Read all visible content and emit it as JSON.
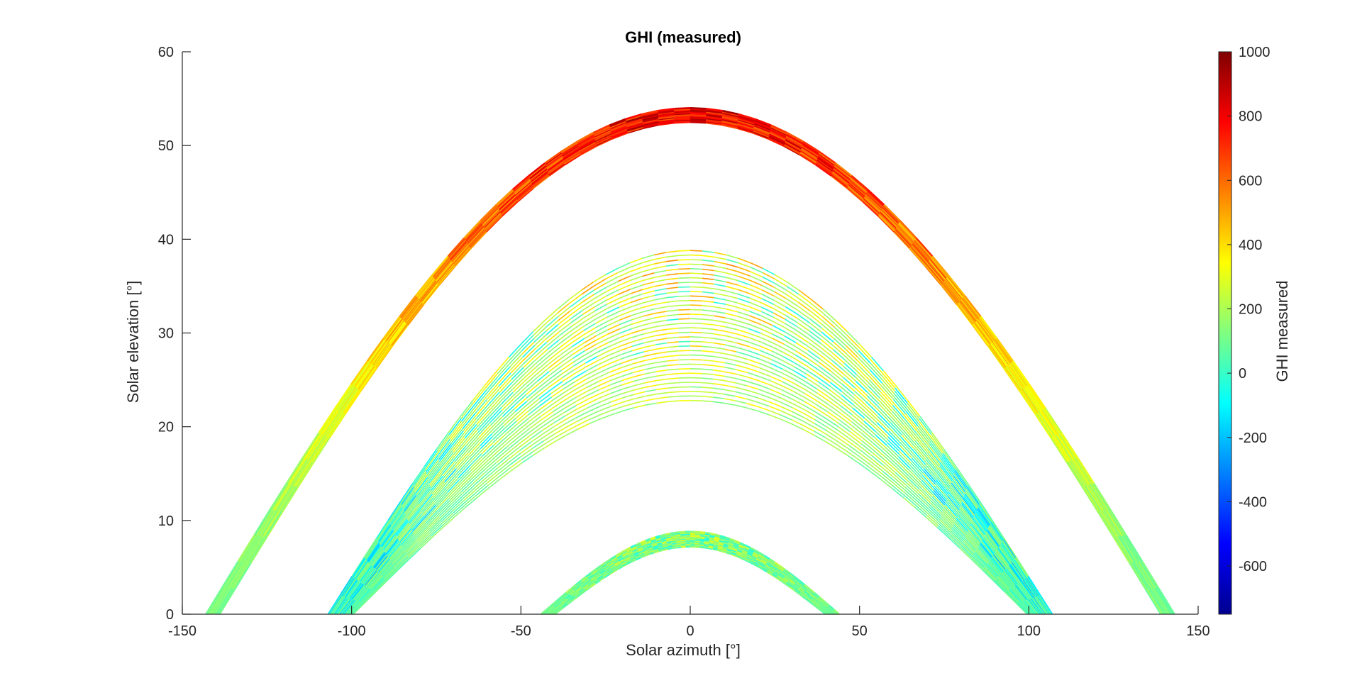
{
  "chart_data": {
    "type": "scatter",
    "title": "GHI (measured)",
    "xlabel": "Solar azimuth [°]",
    "ylabel": "Solar elevation [°]",
    "xlim": [
      -150,
      150
    ],
    "ylim": [
      0,
      60
    ],
    "xticks": [
      -150,
      -100,
      -50,
      0,
      50,
      100,
      150
    ],
    "yticks": [
      0,
      10,
      20,
      30,
      40,
      50,
      60
    ],
    "grid": false,
    "colorbar": {
      "label": "GHI measured",
      "colormap": "jet",
      "range": [
        -750,
        1000
      ],
      "ticks": [
        -600,
        -400,
        -200,
        0,
        200,
        400,
        600,
        800,
        1000
      ],
      "colors": [
        "#00008f",
        "#0000ff",
        "#0080ff",
        "#00ffff",
        "#80ff80",
        "#ffff00",
        "#ff8000",
        "#ff0000",
        "#800000"
      ]
    },
    "series": [
      {
        "peak_elevation_range": [
          52.5,
          54.0
        ],
        "azimuth_extent": [
          -143,
          143
        ],
        "ghi_near_peak": 800,
        "ghi_near_horizon": 100
      },
      {
        "peak_elevation_range": [
          22.8,
          38.8
        ],
        "azimuth_extent": [
          -107,
          107
        ],
        "ghi_near_peak": 400,
        "ghi_near_horizon": 50
      },
      {
        "peak_elevation_range": [
          7.2,
          8.8
        ],
        "azimuth_extent": [
          -44,
          44
        ],
        "ghi_near_peak": 130,
        "ghi_near_horizon": 100
      }
    ]
  }
}
